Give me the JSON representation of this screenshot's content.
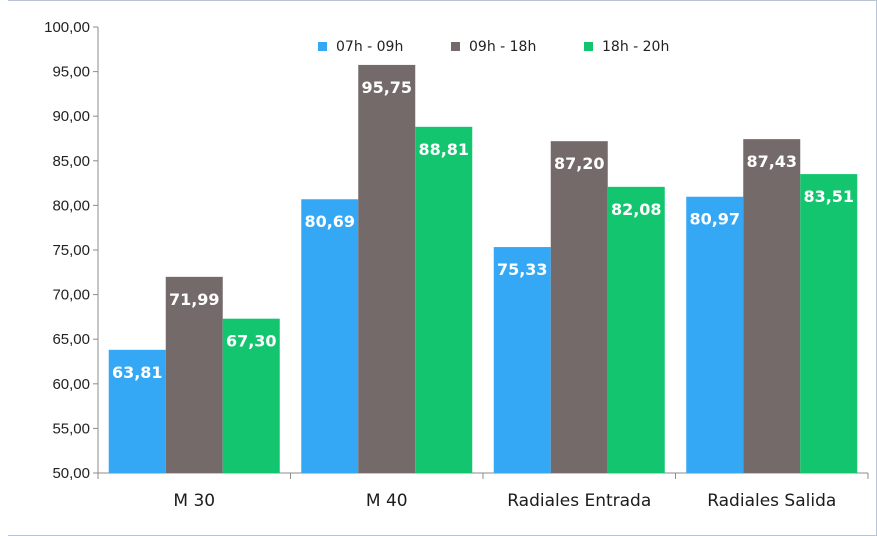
{
  "chart_data": {
    "type": "bar",
    "title": "",
    "xlabel": "",
    "ylabel": "",
    "ylim": [
      50,
      100
    ],
    "ytick_step": 5,
    "grid": false,
    "legend_position": "top-center",
    "categories": [
      "M 30",
      "M 40",
      "Radiales Entrada",
      "Radiales Salida"
    ],
    "series": [
      {
        "name": "07h - 09h",
        "color": "#35a8f5",
        "values": [
          63.81,
          80.69,
          75.33,
          80.97
        ]
      },
      {
        "name": "09h - 18h",
        "color": "#746a6a",
        "values": [
          71.99,
          95.75,
          87.2,
          87.43
        ]
      },
      {
        "name": "18h - 20h",
        "color": "#13c56f",
        "values": [
          67.3,
          88.81,
          82.08,
          83.51
        ]
      }
    ],
    "number_format": "comma-2-decimals"
  }
}
